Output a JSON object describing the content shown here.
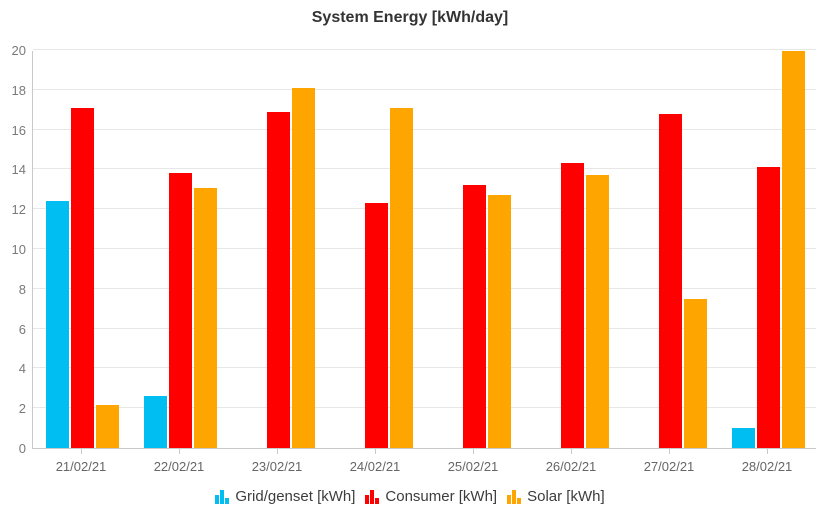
{
  "chart_data": {
    "type": "bar",
    "title": "System Energy [kWh/day]",
    "categories": [
      "21/02/21",
      "22/02/21",
      "23/02/21",
      "24/02/21",
      "25/02/21",
      "26/02/21",
      "27/02/21",
      "28/02/21"
    ],
    "series": [
      {
        "key": "grid-genset",
        "name": "Grid/genset [kWh]",
        "color": "#00bdf2",
        "values": [
          12.4,
          2.6,
          0,
          0,
          0,
          0,
          0,
          1.0
        ]
      },
      {
        "key": "consumer",
        "name": "Consumer [kWh]",
        "color": "#ff0000",
        "values": [
          17.1,
          13.8,
          16.9,
          12.3,
          13.2,
          14.3,
          16.8,
          14.1
        ]
      },
      {
        "key": "solar",
        "name": "Solar [kWh]",
        "color": "#ffa500",
        "values": [
          2.15,
          13.05,
          18.1,
          17.1,
          12.7,
          13.7,
          7.5,
          19.95
        ]
      }
    ],
    "xlabel": "",
    "ylabel": "",
    "ylim": [
      0,
      20
    ],
    "yticks": [
      0,
      2,
      4,
      6,
      8,
      10,
      12,
      14,
      16,
      18,
      20
    ],
    "grid": true,
    "legend_position": "bottom"
  },
  "styles": {
    "background": "#ffffff",
    "grid_color": "#e7e7e7",
    "axis_color": "#c9c9c9",
    "title_color": "#333333",
    "y_label_color": "#7a7a7a",
    "x_label_color": "#666666",
    "legend_text_color": "#3d3d3d"
  }
}
